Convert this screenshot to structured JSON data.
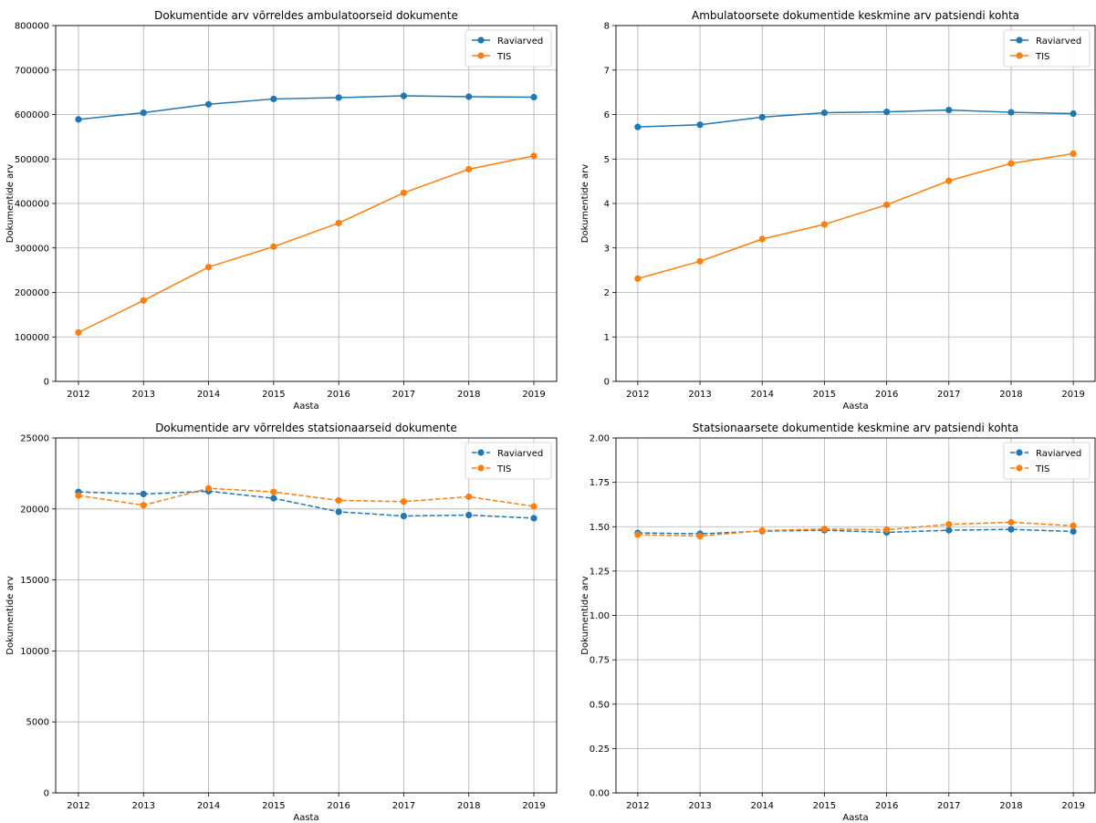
{
  "colors": {
    "raviarved": "#1f77b4",
    "tis": "#ff7f0e",
    "grid": "#b0b0b0",
    "axis": "#000000"
  },
  "chart_data": [
    {
      "type": "line",
      "title": "Dokumentide arv võrreldes ambulatoorseid dokumente",
      "xlabel": "Aasta",
      "ylabel": "Dokumentide arv",
      "x": [
        2012,
        2013,
        2014,
        2015,
        2016,
        2017,
        2018,
        2019
      ],
      "ylim": [
        0,
        800000
      ],
      "yticks": [
        0,
        100000,
        200000,
        300000,
        400000,
        500000,
        600000,
        700000,
        800000
      ],
      "ytick_labels": [
        "0",
        "100000",
        "200000",
        "300000",
        "400000",
        "500000",
        "600000",
        "700000",
        "800000"
      ],
      "grid": true,
      "legend": "top-right",
      "line_style": "solid",
      "series": [
        {
          "name": "Raviarved",
          "values": [
            589000,
            604000,
            623000,
            635000,
            638000,
            642000,
            640000,
            639000
          ]
        },
        {
          "name": "TIS",
          "values": [
            110000,
            182000,
            257000,
            303000,
            356000,
            424000,
            477000,
            507000
          ]
        }
      ]
    },
    {
      "type": "line",
      "title": "Ambulatoorsete dokumentide keskmine arv patsiendi kohta",
      "xlabel": "Aasta",
      "ylabel": "Dokumentide arv",
      "x": [
        2012,
        2013,
        2014,
        2015,
        2016,
        2017,
        2018,
        2019
      ],
      "ylim": [
        0,
        8
      ],
      "yticks": [
        0,
        1,
        2,
        3,
        4,
        5,
        6,
        7,
        8
      ],
      "ytick_labels": [
        "0",
        "1",
        "2",
        "3",
        "4",
        "5",
        "6",
        "7",
        "8"
      ],
      "grid": true,
      "legend": "top-right",
      "line_style": "solid",
      "series": [
        {
          "name": "Raviarved",
          "values": [
            5.72,
            5.77,
            5.94,
            6.04,
            6.06,
            6.1,
            6.05,
            6.02
          ]
        },
        {
          "name": "TIS",
          "values": [
            2.31,
            2.7,
            3.2,
            3.53,
            3.97,
            4.51,
            4.9,
            5.12
          ]
        }
      ]
    },
    {
      "type": "line",
      "title": "Dokumentide arv võrreldes statsionaarseid dokumente",
      "xlabel": "Aasta",
      "ylabel": "Dokumentide arv",
      "x": [
        2012,
        2013,
        2014,
        2015,
        2016,
        2017,
        2018,
        2019
      ],
      "ylim": [
        0,
        25000
      ],
      "yticks": [
        0,
        5000,
        10000,
        15000,
        20000,
        25000
      ],
      "ytick_labels": [
        "0",
        "5000",
        "10000",
        "15000",
        "20000",
        "25000"
      ],
      "grid": true,
      "legend": "top-right",
      "line_style": "dashed",
      "series": [
        {
          "name": "Raviarved",
          "values": [
            21200,
            21050,
            21250,
            20750,
            19800,
            19500,
            19570,
            19350
          ]
        },
        {
          "name": "TIS",
          "values": [
            20950,
            20260,
            21450,
            21200,
            20600,
            20520,
            20860,
            20180
          ]
        }
      ]
    },
    {
      "type": "line",
      "title": "Statsionaarsete dokumentide keskmine arv patsiendi kohta",
      "xlabel": "Aasta",
      "ylabel": "Dokumentide arv",
      "x": [
        2012,
        2013,
        2014,
        2015,
        2016,
        2017,
        2018,
        2019
      ],
      "ylim": [
        0,
        2
      ],
      "yticks": [
        0,
        0.25,
        0.5,
        0.75,
        1,
        1.25,
        1.5,
        1.75,
        2
      ],
      "ytick_labels": [
        "0.00",
        "0.25",
        "0.50",
        "0.75",
        "1.00",
        "1.25",
        "1.50",
        "1.75",
        "2.00"
      ],
      "grid": true,
      "legend": "top-right",
      "line_style": "dashed",
      "series": [
        {
          "name": "Raviarved",
          "values": [
            1.465,
            1.46,
            1.475,
            1.48,
            1.468,
            1.48,
            1.485,
            1.473
          ]
        },
        {
          "name": "TIS",
          "values": [
            1.455,
            1.447,
            1.478,
            1.487,
            1.483,
            1.513,
            1.525,
            1.505
          ]
        }
      ]
    }
  ]
}
